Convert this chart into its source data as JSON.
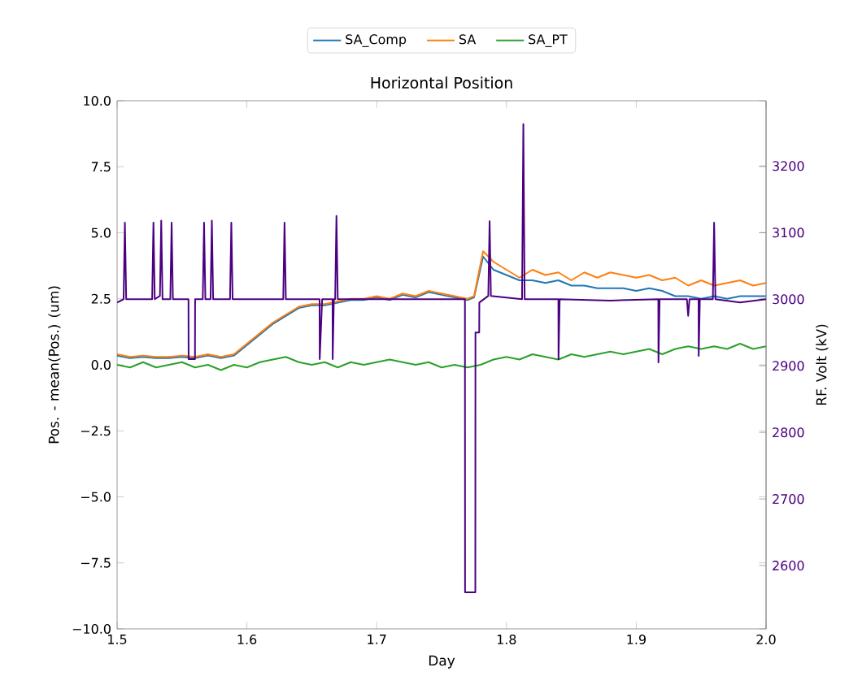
{
  "chart_data": {
    "type": "line",
    "title": "Horizontal Position",
    "xlabel": "Day",
    "ylabel": "Pos. - mean(Pos.) (um)",
    "y2label": "RF. Volt (kV)",
    "xlim": [
      1.5,
      2.0
    ],
    "ylim": [
      -10,
      10
    ],
    "y2lim": [
      2505,
      3298
    ],
    "xticks": [
      {
        "value": 1.5,
        "label": "1.5"
      },
      {
        "value": 1.6,
        "label": "1.6"
      },
      {
        "value": 1.7,
        "label": "1.7"
      },
      {
        "value": 1.8,
        "label": "1.8"
      },
      {
        "value": 1.9,
        "label": "1.9"
      },
      {
        "value": 2.0,
        "label": "2.0"
      }
    ],
    "yticks": [
      {
        "value": -10,
        "label": "−10.0"
      },
      {
        "value": -7.5,
        "label": "−7.5"
      },
      {
        "value": -5,
        "label": "−5.0"
      },
      {
        "value": -2.5,
        "label": "−2.5"
      },
      {
        "value": 0,
        "label": "0.0"
      },
      {
        "value": 2.5,
        "label": "2.5"
      },
      {
        "value": 5,
        "label": "5.0"
      },
      {
        "value": 7.5,
        "label": "7.5"
      },
      {
        "value": 10,
        "label": "10.0"
      }
    ],
    "y2ticks": [
      2600,
      2700,
      2800,
      2900,
      3000,
      3100,
      3200
    ],
    "legend": "top",
    "grid": false,
    "marker": "none",
    "line_style": "solid",
    "x": [
      1.5,
      1.51,
      1.52,
      1.53,
      1.54,
      1.55,
      1.56,
      1.57,
      1.58,
      1.59,
      1.6,
      1.61,
      1.62,
      1.63,
      1.64,
      1.65,
      1.66,
      1.67,
      1.68,
      1.69,
      1.7,
      1.71,
      1.72,
      1.73,
      1.74,
      1.75,
      1.76,
      1.77,
      1.78,
      1.79,
      1.8,
      1.81,
      1.82,
      1.83,
      1.84,
      1.85,
      1.86,
      1.87,
      1.88,
      1.89,
      1.9,
      1.91,
      1.92,
      1.93,
      1.94,
      1.95,
      1.96,
      1.97,
      1.98,
      1.99,
      2.0
    ],
    "series": [
      {
        "name": "SA_Comp",
        "color": "#1f77b4",
        "x": [
          1.5,
          1.51,
          1.52,
          1.53,
          1.54,
          1.55,
          1.56,
          1.57,
          1.58,
          1.59,
          1.6,
          1.61,
          1.62,
          1.63,
          1.64,
          1.65,
          1.66,
          1.67,
          1.68,
          1.69,
          1.7,
          1.71,
          1.72,
          1.73,
          1.74,
          1.75,
          1.76,
          1.77,
          1.775,
          1.782,
          1.79,
          1.8,
          1.81,
          1.82,
          1.83,
          1.84,
          1.85,
          1.86,
          1.87,
          1.88,
          1.89,
          1.9,
          1.91,
          1.92,
          1.93,
          1.94,
          1.95,
          1.96,
          1.97,
          1.98,
          1.99,
          2.0
        ],
        "values": [
          0.35,
          0.25,
          0.3,
          0.25,
          0.25,
          0.3,
          0.25,
          0.35,
          0.25,
          0.35,
          0.75,
          1.15,
          1.55,
          1.85,
          2.15,
          2.25,
          2.25,
          2.35,
          2.45,
          2.45,
          2.55,
          2.45,
          2.65,
          2.55,
          2.75,
          2.65,
          2.55,
          2.45,
          2.55,
          4.1,
          3.6,
          3.4,
          3.2,
          3.2,
          3.1,
          3.2,
          3.0,
          3.0,
          2.9,
          2.9,
          2.9,
          2.8,
          2.9,
          2.8,
          2.6,
          2.6,
          2.5,
          2.6,
          2.5,
          2.6,
          2.6,
          2.6
        ]
      },
      {
        "name": "SA",
        "color": "#ff7f0e",
        "x": [
          1.5,
          1.51,
          1.52,
          1.53,
          1.54,
          1.55,
          1.56,
          1.57,
          1.58,
          1.59,
          1.6,
          1.61,
          1.62,
          1.63,
          1.64,
          1.65,
          1.66,
          1.67,
          1.68,
          1.69,
          1.7,
          1.71,
          1.72,
          1.73,
          1.74,
          1.75,
          1.76,
          1.77,
          1.775,
          1.782,
          1.79,
          1.8,
          1.81,
          1.82,
          1.83,
          1.84,
          1.85,
          1.86,
          1.87,
          1.88,
          1.89,
          1.9,
          1.91,
          1.92,
          1.93,
          1.94,
          1.95,
          1.96,
          1.97,
          1.98,
          1.99,
          2.0
        ],
        "values": [
          0.4,
          0.3,
          0.35,
          0.3,
          0.3,
          0.35,
          0.3,
          0.4,
          0.3,
          0.4,
          0.8,
          1.2,
          1.6,
          1.9,
          2.2,
          2.3,
          2.3,
          2.4,
          2.5,
          2.5,
          2.6,
          2.5,
          2.7,
          2.6,
          2.8,
          2.7,
          2.6,
          2.5,
          2.6,
          4.3,
          3.9,
          3.6,
          3.3,
          3.6,
          3.4,
          3.5,
          3.2,
          3.5,
          3.3,
          3.5,
          3.4,
          3.3,
          3.4,
          3.2,
          3.3,
          3.0,
          3.2,
          3.0,
          3.1,
          3.2,
          3.0,
          3.1
        ]
      },
      {
        "name": "SA_PT",
        "color": "#2ca02c",
        "values": [
          0.0,
          -0.1,
          0.1,
          -0.1,
          0.0,
          0.1,
          -0.1,
          0.0,
          -0.2,
          0.0,
          -0.1,
          0.1,
          0.2,
          0.3,
          0.1,
          0.0,
          0.1,
          -0.1,
          0.1,
          0.0,
          0.1,
          0.2,
          0.1,
          0.0,
          0.1,
          -0.1,
          0.0,
          -0.1,
          0.0,
          0.2,
          0.3,
          0.2,
          0.4,
          0.3,
          0.2,
          0.4,
          0.3,
          0.4,
          0.5,
          0.4,
          0.5,
          0.6,
          0.4,
          0.6,
          0.7,
          0.6,
          0.7,
          0.6,
          0.8,
          0.6,
          0.7
        ]
      },
      {
        "color": "#4b0082",
        "axis": "y2",
        "x": [
          1.5,
          1.505,
          1.506,
          1.507,
          1.527,
          1.528,
          1.529,
          1.533,
          1.534,
          1.535,
          1.541,
          1.542,
          1.543,
          1.555,
          1.5551,
          1.56,
          1.5601,
          1.566,
          1.567,
          1.568,
          1.572,
          1.573,
          1.574,
          1.587,
          1.588,
          1.589,
          1.628,
          1.629,
          1.63,
          1.656,
          1.6561,
          1.658,
          1.666,
          1.6661,
          1.667,
          1.668,
          1.669,
          1.67,
          1.7,
          1.768,
          1.7681,
          1.776,
          1.7761,
          1.779,
          1.7791,
          1.786,
          1.787,
          1.788,
          1.812,
          1.813,
          1.814,
          1.84,
          1.8401,
          1.841,
          1.88,
          1.917,
          1.9171,
          1.918,
          1.939,
          1.94,
          1.941,
          1.948,
          1.9481,
          1.949,
          1.959,
          1.96,
          1.961,
          1.98,
          2.0
        ],
        "values": [
          2995,
          3000,
          3115,
          3000,
          3000,
          3115,
          3000,
          3005,
          3118,
          3000,
          3000,
          3115,
          3000,
          3000,
          2910,
          2910,
          3000,
          3000,
          3115,
          3000,
          3000,
          3118,
          3000,
          3000,
          3115,
          3000,
          3000,
          3115,
          3000,
          3000,
          2910,
          3000,
          3000,
          2910,
          3000,
          3000,
          3125,
          3000,
          3000,
          3000,
          2560,
          2560,
          2950,
          2950,
          2995,
          3005,
          3117,
          3005,
          3000,
          3263,
          3000,
          3000,
          2910,
          3000,
          2998,
          3000,
          2905,
          3000,
          3000,
          2975,
          3000,
          3000,
          2915,
          3000,
          3000,
          3115,
          3000,
          2995,
          3000
        ]
      }
    ]
  }
}
